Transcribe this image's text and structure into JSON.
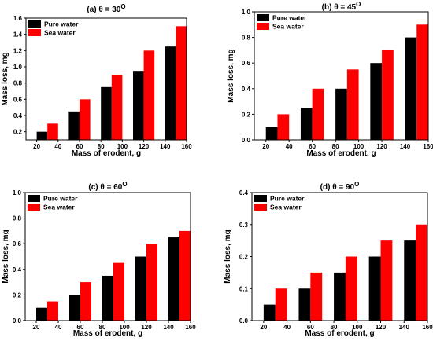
{
  "colors": {
    "pure": "#000000",
    "sea": "#ff0000",
    "axis": "#000000"
  },
  "chart_data": [
    {
      "type": "bar",
      "title": "(a) θ = 30",
      "title_superscript": "O",
      "xlabel": "Mass of erodent, g",
      "ylabel": "Mass loss, mg",
      "xlim": [
        10,
        160
      ],
      "ylim": [
        0.1,
        1.6
      ],
      "xticks": [
        "20",
        "40",
        "60",
        "80",
        "100",
        "120",
        "140",
        "160"
      ],
      "yticks": [
        "0.2",
        "0.4",
        "0.6",
        "0.8",
        "1.0",
        "1.2",
        "1.4",
        "1.6"
      ],
      "grid": false,
      "legend": "top-left",
      "series": [
        {
          "name": "Pure water",
          "x": [
            25,
            55,
            85,
            115,
            145
          ],
          "values": [
            0.2,
            0.45,
            0.75,
            0.95,
            1.25
          ]
        },
        {
          "name": "Sea water",
          "x": [
            35,
            65,
            95,
            125,
            155
          ],
          "values": [
            0.3,
            0.6,
            0.9,
            1.2,
            1.5
          ]
        }
      ]
    },
    {
      "type": "bar",
      "title": "(b) θ = 45",
      "title_superscript": "O",
      "xlabel": "Mass of erodent, g",
      "ylabel": "Mass loss, mg",
      "xlim": [
        10,
        160
      ],
      "ylim": [
        0.0,
        1.0
      ],
      "xticks": [
        "20",
        "40",
        "60",
        "80",
        "100",
        "120",
        "140",
        "160"
      ],
      "yticks": [
        "0.0",
        "0.2",
        "0.4",
        "0.6",
        "0.8",
        "1.0"
      ],
      "grid": false,
      "legend": "top-left",
      "series": [
        {
          "name": "Pure water",
          "x": [
            25,
            55,
            85,
            115,
            145
          ],
          "values": [
            0.1,
            0.25,
            0.4,
            0.6,
            0.8
          ]
        },
        {
          "name": "Sea water",
          "x": [
            35,
            65,
            95,
            125,
            155
          ],
          "values": [
            0.2,
            0.4,
            0.55,
            0.7,
            0.9
          ]
        }
      ]
    },
    {
      "type": "bar",
      "title": "(c) θ = 60",
      "title_superscript": "O",
      "xlabel": "Mass of erodent, g",
      "ylabel": "Mass loss, mg",
      "xlim": [
        10,
        160
      ],
      "ylim": [
        0.0,
        1.0
      ],
      "xticks": [
        "20",
        "40",
        "60",
        "80",
        "100",
        "120",
        "140",
        "160"
      ],
      "yticks": [
        "0.0",
        "0.2",
        "0.4",
        "0.6",
        "0.8",
        "1.0"
      ],
      "grid": false,
      "legend": "top-left",
      "series": [
        {
          "name": "Pure water",
          "x": [
            25,
            55,
            85,
            115,
            145
          ],
          "values": [
            0.1,
            0.2,
            0.35,
            0.5,
            0.65
          ]
        },
        {
          "name": "Sea water",
          "x": [
            35,
            65,
            95,
            125,
            155
          ],
          "values": [
            0.15,
            0.3,
            0.45,
            0.6,
            0.7
          ]
        }
      ]
    },
    {
      "type": "bar",
      "title": "(d) θ = 90",
      "title_superscript": "O",
      "xlabel": "Mass of erodent, g",
      "ylabel": "Mass loss, mg",
      "xlim": [
        10,
        160
      ],
      "ylim": [
        0.0,
        0.4
      ],
      "xticks": [
        "20",
        "40",
        "60",
        "80",
        "100",
        "120",
        "140",
        "160"
      ],
      "yticks": [
        "0.0",
        "0.1",
        "0.2",
        "0.3",
        "0.4"
      ],
      "grid": false,
      "legend": "top-left",
      "series": [
        {
          "name": "Pure water",
          "x": [
            25,
            55,
            85,
            115,
            145
          ],
          "values": [
            0.05,
            0.1,
            0.15,
            0.2,
            0.25
          ]
        },
        {
          "name": "Sea water",
          "x": [
            35,
            65,
            95,
            125,
            155
          ],
          "values": [
            0.1,
            0.15,
            0.2,
            0.25,
            0.3
          ]
        }
      ]
    }
  ]
}
